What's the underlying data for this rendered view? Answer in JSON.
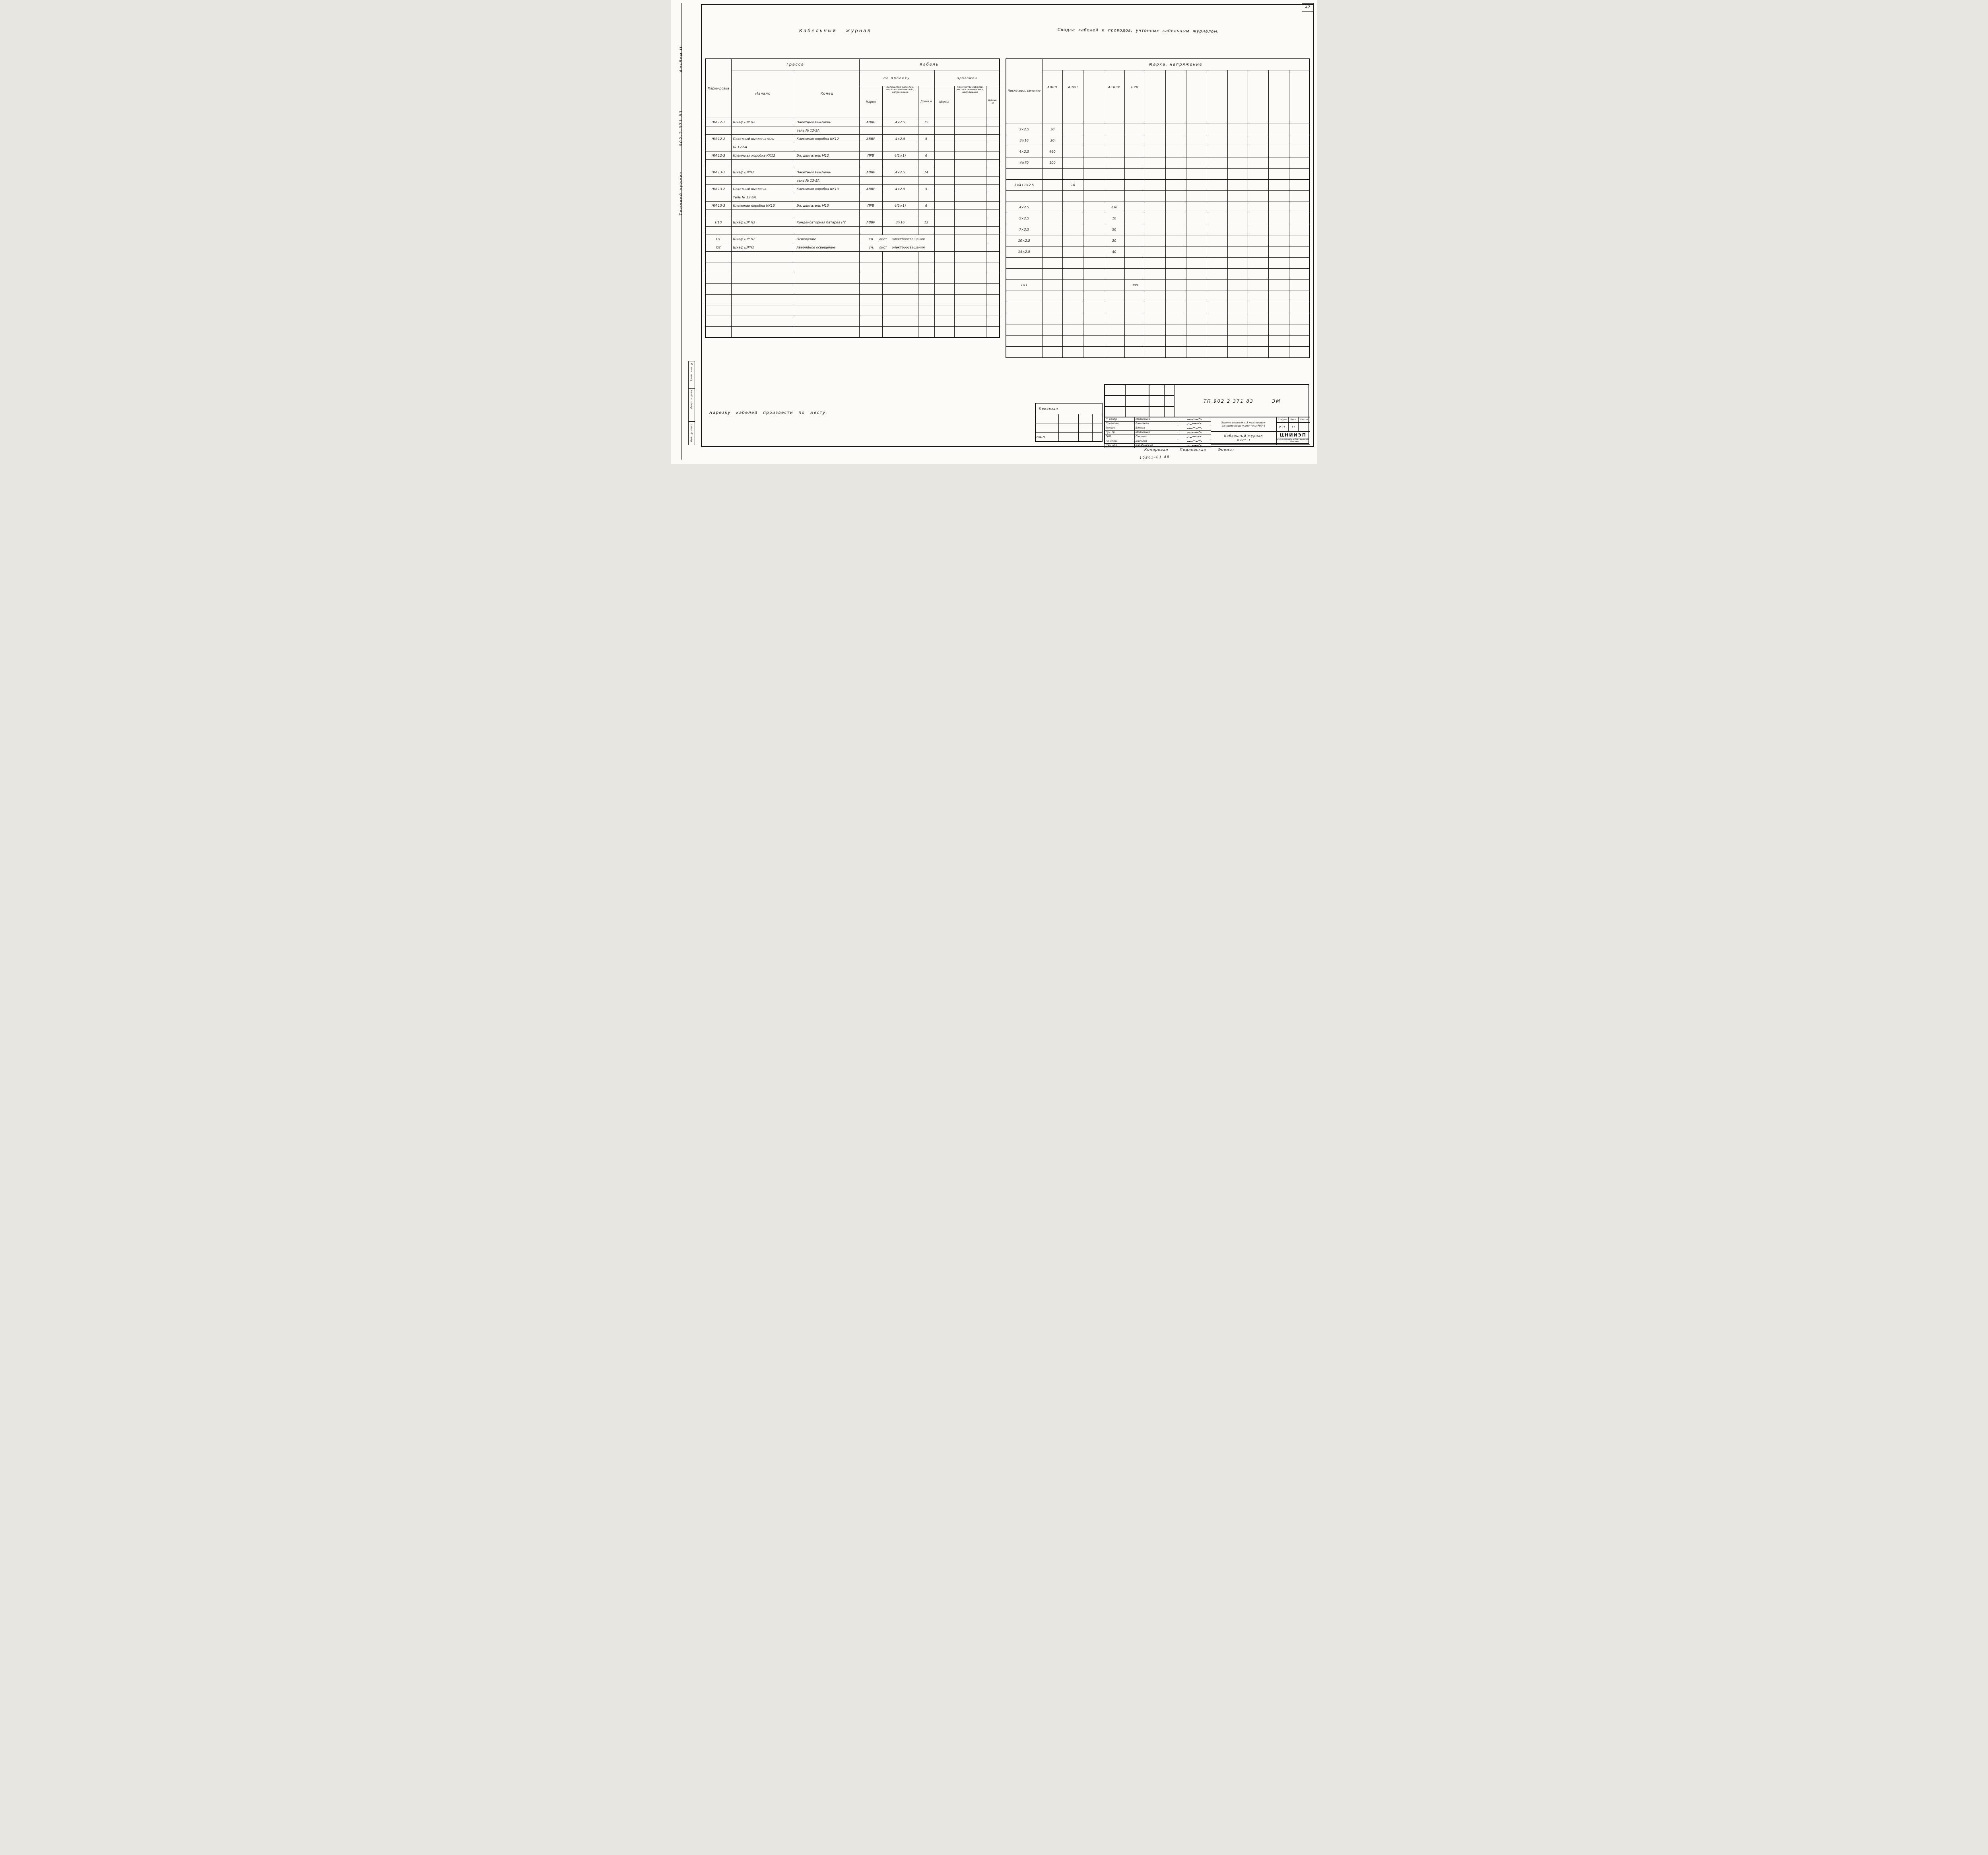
{
  "page": {
    "number": "47"
  },
  "margin": {
    "album": "Альбом II",
    "project_code": "902-2-371.83",
    "project_type": "Типовой проект",
    "stamp_boxes": [
      "Взам. инв. №",
      "Подп. и дата",
      "Инв. № подл."
    ]
  },
  "cable_journal": {
    "title": "Кабельный журнал",
    "headers": {
      "marking": "Марки-ровка",
      "route": "Трасса",
      "start": "Начало",
      "end": "Конец",
      "cable": "Кабель",
      "by_project": "по проекту",
      "laid": "Проложен",
      "mark": "Марка",
      "qty_project": "Количество кабе-лей, число и сече-ние жил, напря-жение",
      "length_project": "Длина м",
      "mark_laid": "Марка",
      "qty_laid": "Количество кабелей, число и сечение жил, напряжение",
      "length_laid": "Длина, м"
    },
    "rows": [
      [
        "НМ 12-1",
        "Шкаф ШР Н2",
        "Пакетный выключа-",
        "АВВР",
        "4×2.5",
        "15",
        "",
        "",
        ""
      ],
      [
        "",
        "",
        "тель № 12-SA",
        "",
        "",
        "",
        "",
        "",
        ""
      ],
      [
        "НМ 12-2",
        "Пакетный выключатель",
        "Клеммная коробка КК12",
        "АВВР",
        "4×2.5",
        "5",
        "",
        "",
        ""
      ],
      [
        "",
        "№ 12-SA",
        "",
        "",
        "",
        "",
        "",
        "",
        ""
      ],
      [
        "НМ 12-3",
        "Клеммная коробка КК12",
        "Эл. двигатель М12",
        "ПРВ",
        "4(1×1)",
        "6",
        "",
        "",
        ""
      ],
      [
        "",
        "",
        "",
        "",
        "",
        "",
        "",
        "",
        ""
      ],
      [
        "НМ 13-1",
        "Шкаф ШРН2",
        "Пакетный выключа-",
        "АВВР",
        "4×2.5",
        "14",
        "",
        "",
        ""
      ],
      [
        "",
        "",
        "тель № 13-SA",
        "",
        "",
        "",
        "",
        "",
        ""
      ],
      [
        "НМ 13-2",
        "Пакетный выключа-",
        "Клеммная коробка КК13",
        "АВВР",
        "4×2.5",
        "5",
        "",
        "",
        ""
      ],
      [
        "",
        "тель № 13-SA",
        "",
        "",
        "",
        "",
        "",
        "",
        ""
      ],
      [
        "НМ 13-3",
        "Клеминая коробка КК13",
        "Эл. двигатель М13",
        "ПРВ",
        "4(1×1)",
        "6",
        "",
        "",
        ""
      ],
      [
        "",
        "",
        "",
        "",
        "",
        "",
        "",
        "",
        ""
      ],
      [
        "Н10",
        "Шкаф ШР Н2",
        "Конденсаторная батарея Н2",
        "АВВР",
        "3×16",
        "12",
        "",
        "",
        ""
      ],
      [
        "",
        "",
        "",
        "",
        "",
        "",
        "",
        "",
        ""
      ],
      [
        "О1",
        "Шкаф ШР Н2",
        "Освещение",
        "",
        "",
        "",
        "",
        "",
        ""
      ],
      [
        "О2",
        "Шкаф ШРН1",
        "Аварийное освещение",
        "",
        "",
        "",
        "",
        "",
        ""
      ],
      [
        "",
        "",
        "",
        "",
        "",
        "",
        "",
        "",
        ""
      ],
      [
        "",
        "",
        "",
        "",
        "",
        "",
        "",
        "",
        ""
      ],
      [
        "",
        "",
        "",
        "",
        "",
        "",
        "",
        "",
        ""
      ],
      [
        "",
        "",
        "",
        "",
        "",
        "",
        "",
        "",
        ""
      ],
      [
        "",
        "",
        "",
        "",
        "",
        "",
        "",
        "",
        ""
      ],
      [
        "",
        "",
        "",
        "",
        "",
        "",
        "",
        "",
        ""
      ],
      [
        "",
        "",
        "",
        "",
        "",
        "",
        "",
        "",
        ""
      ],
      [
        "",
        "",
        "",
        "",
        "",
        "",
        "",
        "",
        ""
      ]
    ],
    "note_rows": {
      "14": "см. лист электроосвещения",
      "15": "см. лист электроосвещения"
    }
  },
  "summary": {
    "title": "Сводка кабелей и проводов, учтенных кабельным журналом.",
    "col1": "Число жил, сечение",
    "header_group": "Марка, напряжение",
    "columns": [
      "АВВП",
      "АНРП",
      "",
      "АКВВР",
      "ПРВ",
      "",
      "",
      "",
      "",
      "",
      "",
      "",
      ""
    ],
    "rows": [
      {
        "size": "3×2.5",
        "values": [
          "30",
          "",
          "",
          "",
          "",
          "",
          "",
          "",
          "",
          "",
          "",
          "",
          ""
        ]
      },
      {
        "size": "3×16",
        "values": [
          "20",
          "",
          "",
          "",
          "",
          "",
          "",
          "",
          "",
          "",
          "",
          "",
          ""
        ]
      },
      {
        "size": "4×2.5",
        "values": [
          "460",
          "",
          "",
          "",
          "",
          "",
          "",
          "",
          "",
          "",
          "",
          "",
          ""
        ]
      },
      {
        "size": "4×70",
        "values": [
          "100",
          "",
          "",
          "",
          "",
          "",
          "",
          "",
          "",
          "",
          "",
          "",
          ""
        ]
      },
      {
        "size": "",
        "values": [
          "",
          "",
          "",
          "",
          "",
          "",
          "",
          "",
          "",
          "",
          "",
          "",
          ""
        ]
      },
      {
        "size": "3×4+1×2.5",
        "values": [
          "",
          "10",
          "",
          "",
          "",
          "",
          "",
          "",
          "",
          "",
          "",
          "",
          ""
        ]
      },
      {
        "size": "",
        "values": [
          "",
          "",
          "",
          "",
          "",
          "",
          "",
          "",
          "",
          "",
          "",
          "",
          ""
        ]
      },
      {
        "size": "4×2.5",
        "values": [
          "",
          "",
          "",
          "230",
          "",
          "",
          "",
          "",
          "",
          "",
          "",
          "",
          ""
        ]
      },
      {
        "size": "5×2.5",
        "values": [
          "",
          "",
          "",
          "10",
          "",
          "",
          "",
          "",
          "",
          "",
          "",
          "",
          ""
        ]
      },
      {
        "size": "7×2.5",
        "values": [
          "",
          "",
          "",
          "50",
          "",
          "",
          "",
          "",
          "",
          "",
          "",
          "",
          ""
        ]
      },
      {
        "size": "10×2.5",
        "values": [
          "",
          "",
          "",
          "30",
          "",
          "",
          "",
          "",
          "",
          "",
          "",
          "",
          ""
        ]
      },
      {
        "size": "14×2.5",
        "values": [
          "",
          "",
          "",
          "40",
          "",
          "",
          "",
          "",
          "",
          "",
          "",
          "",
          ""
        ]
      },
      {
        "size": "",
        "values": [
          "",
          "",
          "",
          "",
          "",
          "",
          "",
          "",
          "",
          "",
          "",
          "",
          ""
        ]
      },
      {
        "size": "",
        "values": [
          "",
          "",
          "",
          "",
          "",
          "",
          "",
          "",
          "",
          "",
          "",
          "",
          ""
        ]
      },
      {
        "size": "1×1",
        "values": [
          "",
          "",
          "",
          "",
          "380",
          "",
          "",
          "",
          "",
          "",
          "",
          "",
          ""
        ]
      },
      {
        "size": "",
        "values": [
          "",
          "",
          "",
          "",
          "",
          "",
          "",
          "",
          "",
          "",
          "",
          "",
          ""
        ]
      },
      {
        "size": "",
        "values": [
          "",
          "",
          "",
          "",
          "",
          "",
          "",
          "",
          "",
          "",
          "",
          "",
          ""
        ]
      },
      {
        "size": "",
        "values": [
          "",
          "",
          "",
          "",
          "",
          "",
          "",
          "",
          "",
          "",
          "",
          "",
          ""
        ]
      },
      {
        "size": "",
        "values": [
          "",
          "",
          "",
          "",
          "",
          "",
          "",
          "",
          "",
          "",
          "",
          "",
          ""
        ]
      },
      {
        "size": "",
        "values": [
          "",
          "",
          "",
          "",
          "",
          "",
          "",
          "",
          "",
          "",
          "",
          "",
          ""
        ]
      },
      {
        "size": "",
        "values": [
          "",
          "",
          "",
          "",
          "",
          "",
          "",
          "",
          "",
          "",
          "",
          "",
          ""
        ]
      }
    ]
  },
  "note": "Нарезку кабелей произвести по месту.",
  "attach": {
    "title": "Привязан",
    "inv": "Инв. №"
  },
  "title_block": {
    "doc_number": "ТП 902 2 371 83",
    "doc_suffix": "ЭМ",
    "project_name_line1": "Здание решеток с 3 механизиро-",
    "project_name_line2": "ванными решетками типа РМУ-5",
    "sheet_title_line1": "Кабельный журнал",
    "sheet_title_line2": "Лист 3",
    "stage_label": "Стадия",
    "sheet_label": "Лист",
    "sheets_label": "Листов",
    "stage_value": "Р. П.",
    "sheet_value": "11",
    "sheets_value": "",
    "org_line1": "ЦНИИЭП",
    "org_line2": "инженерного оборудования",
    "org_line3": "г. Москва",
    "signers": [
      {
        "role": "Н. контр",
        "name": "Моисеенко"
      },
      {
        "role": "Проверил",
        "name": "Бакшеева"
      },
      {
        "role": "Техник",
        "name": "Бокова"
      },
      {
        "role": "Рук. гр.",
        "name": "Моисеенко"
      },
      {
        "role": "ГИП",
        "name": "Павлова"
      },
      {
        "role": "Гл. спец.",
        "name": "Данилов"
      },
      {
        "role": "Нач. отд.",
        "name": "Карабинский"
      }
    ],
    "copied_label": "Копировал",
    "copied_name": "Подлевская",
    "format_label": "Формат",
    "copy_code": "10865-01   48"
  }
}
